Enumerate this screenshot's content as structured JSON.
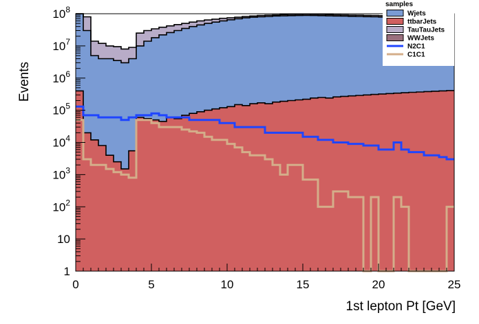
{
  "chart_data": {
    "type": "area",
    "title": "",
    "xlabel": "1st lepton Pt [GeV]",
    "ylabel": "Events",
    "xlim": [
      0,
      25
    ],
    "ylim": [
      1,
      100000000
    ],
    "log_y": true,
    "grid": false,
    "x_ticks": [
      "0",
      "5",
      "10",
      "15",
      "20",
      "25"
    ],
    "y_ticks": [
      {
        "base": "1",
        "exp": ""
      },
      {
        "base": "10",
        "exp": ""
      },
      {
        "base": "10",
        "exp": "2"
      },
      {
        "base": "10",
        "exp": "3"
      },
      {
        "base": "10",
        "exp": "4"
      },
      {
        "base": "10",
        "exp": "5"
      },
      {
        "base": "10",
        "exp": "6"
      },
      {
        "base": "10",
        "exp": "7"
      },
      {
        "base": "10",
        "exp": "8"
      }
    ],
    "legend": {
      "title": "samples",
      "placement": "top-right",
      "entries": [
        {
          "name": "Wjets",
          "kind": "fill",
          "color": "#7a9bd4"
        },
        {
          "name": "ttbarJets",
          "kind": "fill",
          "color": "#d06060"
        },
        {
          "name": "TauTauJets",
          "kind": "fill",
          "color": "#b8acc8"
        },
        {
          "name": "WWJets",
          "kind": "fill",
          "color": "#9a6f7e"
        },
        {
          "name": "N2C1",
          "kind": "line",
          "color": "#1f45ff"
        },
        {
          "name": "C1C1",
          "kind": "line",
          "color": "#d4ae8a"
        }
      ]
    },
    "bin_edges": [
      0,
      0.5,
      1,
      1.5,
      2,
      2.5,
      3,
      3.5,
      4,
      4.5,
      5,
      5.5,
      6,
      6.5,
      7,
      7.5,
      8,
      8.5,
      9,
      9.5,
      10,
      10.5,
      11,
      11.5,
      12,
      12.5,
      13,
      13.5,
      14,
      14.5,
      15,
      15.5,
      16,
      16.5,
      17,
      17.5,
      18,
      18.5,
      19,
      19.5,
      20,
      20.5,
      21,
      21.5,
      22,
      22.5,
      23,
      23.5,
      24,
      24.5,
      25
    ],
    "stacked": [
      {
        "name": "ttbarJets",
        "color": "#d06060",
        "top": [
          400000,
          20000,
          12000,
          8000,
          4000,
          2500,
          1500,
          5500,
          60000,
          55000,
          50000,
          45000,
          60000,
          55000,
          70000,
          80000,
          90000,
          100000,
          110000,
          120000,
          130000,
          150000,
          140000,
          160000,
          170000,
          160000,
          180000,
          190000,
          200000,
          210000,
          220000,
          240000,
          250000,
          240000,
          260000,
          270000,
          280000,
          290000,
          300000,
          310000,
          320000,
          330000,
          340000,
          350000,
          360000,
          370000,
          380000,
          390000,
          400000,
          410000
        ]
      },
      {
        "name": "Wjets",
        "color": "#7a9bd4",
        "top": [
          100000000,
          30000000,
          5000000,
          4000000,
          4000000,
          3500000,
          3000000,
          4000000,
          10000000,
          14000000,
          18000000,
          22000000,
          26000000,
          30000000,
          35000000,
          40000000,
          45000000,
          50000000,
          55000000,
          60000000,
          65000000,
          70000000,
          75000000,
          78000000,
          80000000,
          82000000,
          85000000,
          86000000,
          87000000,
          88000000,
          89000000,
          88000000,
          87000000,
          86000000,
          85000000,
          84000000,
          83000000,
          82000000,
          81000000,
          80000000,
          79000000,
          78000000,
          77000000,
          76000000,
          75000000,
          74000000,
          73000000,
          72000000,
          71000000,
          70000000
        ]
      },
      {
        "name": "TauTauJets",
        "color": "#b8acc8",
        "top": [
          100000000,
          80000000,
          14000000,
          12000000,
          10000000,
          9500000,
          8000000,
          9000000,
          25000000,
          30000000,
          34000000,
          38000000,
          42000000,
          46000000,
          50000000,
          55000000,
          60000000,
          64000000,
          68000000,
          72000000,
          75000000,
          78000000,
          82000000,
          85000000,
          88000000,
          90000000,
          92000000,
          94000000,
          95000000,
          96000000,
          97000000,
          96000000,
          95000000,
          94000000,
          93000000,
          92000000,
          91000000,
          90000000,
          89000000,
          88000000,
          87000000,
          86000000,
          85000000,
          84000000,
          83000000,
          82000000,
          81000000,
          80000000,
          79000000,
          78000000
        ]
      }
    ],
    "series": [
      {
        "name": "N2C1",
        "color": "#1f45ff",
        "values": [
          130000,
          70000,
          70000,
          60000,
          60000,
          60000,
          50000,
          60000,
          70000,
          70000,
          80000,
          70000,
          60000,
          60000,
          60000,
          50000,
          50000,
          50000,
          50000,
          40000,
          40000,
          30000,
          30000,
          30000,
          30000,
          20000,
          20000,
          20000,
          20000,
          20000,
          15000,
          15000,
          12000,
          12000,
          10000,
          10000,
          9000,
          9000,
          8000,
          8000,
          6000,
          6000,
          10000,
          6000,
          5000,
          5000,
          4000,
          4000,
          3500,
          3000
        ]
      },
      {
        "name": "C1C1",
        "color": "#d4ae8a",
        "values": [
          50000,
          3000,
          2000,
          2000,
          1500,
          1200,
          1000,
          800,
          50000,
          50000,
          40000,
          30000,
          30000,
          30000,
          25000,
          22000,
          20000,
          15000,
          12000,
          12000,
          9000,
          7000,
          5000,
          4000,
          4000,
          3000,
          2000,
          1000,
          2000,
          2000,
          700,
          700,
          100,
          100,
          300,
          300,
          200,
          200,
          1,
          200,
          1,
          1,
          200,
          100,
          1,
          1,
          1,
          1,
          1,
          100
        ]
      }
    ]
  }
}
